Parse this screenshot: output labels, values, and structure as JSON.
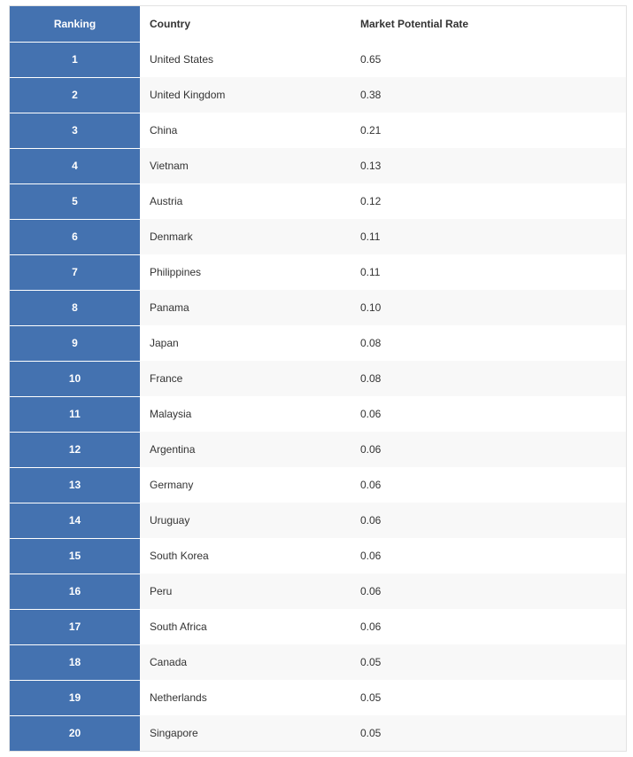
{
  "table": {
    "headers": {
      "ranking": "Ranking",
      "country": "Country",
      "rate": "Market Potential Rate"
    },
    "rows": [
      {
        "rank": "1",
        "country": "United States",
        "rate": "0.65"
      },
      {
        "rank": "2",
        "country": "United Kingdom",
        "rate": "0.38"
      },
      {
        "rank": "3",
        "country": "China",
        "rate": "0.21"
      },
      {
        "rank": "4",
        "country": "Vietnam",
        "rate": "0.13"
      },
      {
        "rank": "5",
        "country": "Austria",
        "rate": "0.12"
      },
      {
        "rank": "6",
        "country": "Denmark",
        "rate": "0.11"
      },
      {
        "rank": "7",
        "country": "Philippines",
        "rate": "0.11"
      },
      {
        "rank": "8",
        "country": "Panama",
        "rate": "0.10"
      },
      {
        "rank": "9",
        "country": "Japan",
        "rate": "0.08"
      },
      {
        "rank": "10",
        "country": "France",
        "rate": "0.08"
      },
      {
        "rank": "11",
        "country": "Malaysia",
        "rate": "0.06"
      },
      {
        "rank": "12",
        "country": "Argentina",
        "rate": "0.06"
      },
      {
        "rank": "13",
        "country": "Germany",
        "rate": "0.06"
      },
      {
        "rank": "14",
        "country": "Uruguay",
        "rate": "0.06"
      },
      {
        "rank": "15",
        "country": "South Korea",
        "rate": "0.06"
      },
      {
        "rank": "16",
        "country": "Peru",
        "rate": "0.06"
      },
      {
        "rank": "17",
        "country": "South Africa",
        "rate": "0.06"
      },
      {
        "rank": "18",
        "country": "Canada",
        "rate": "0.05"
      },
      {
        "rank": "19",
        "country": "Netherlands",
        "rate": "0.05"
      },
      {
        "rank": "20",
        "country": "Singapore",
        "rate": "0.05"
      }
    ]
  },
  "colors": {
    "rank_column": "#4472b0",
    "alt_row": "#f8f8f8",
    "text": "#333333"
  }
}
